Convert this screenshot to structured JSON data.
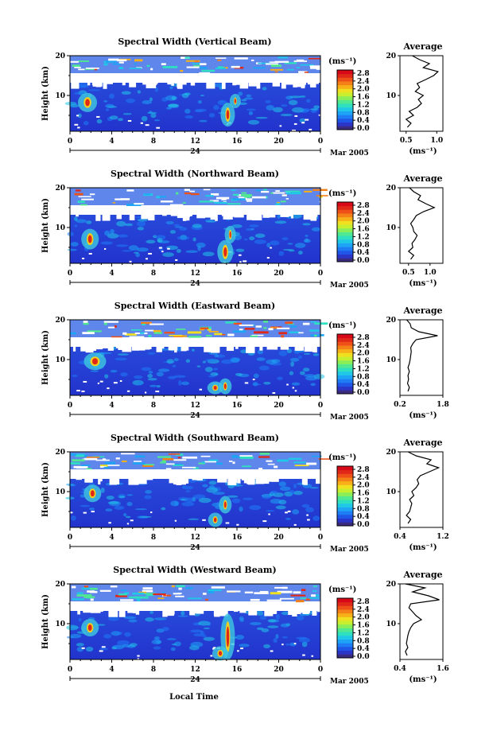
{
  "figure": {
    "xlabel": "Local Time",
    "date_label": "Mar 2005",
    "unit_label": "(ms⁻¹)",
    "ylabel": "Height (km)",
    "avg_title": "Average",
    "avg_xlabel": "(ms⁻¹)",
    "day_marker": "24",
    "colors": {
      "scale": [
        "#3a2a80",
        "#2b35c8",
        "#1f56e8",
        "#1e7cf5",
        "#1ea4f5",
        "#20c8e8",
        "#2ee0c0",
        "#50e890",
        "#8aee58",
        "#c8ee30",
        "#f0e020",
        "#f8b018",
        "#f48018",
        "#ee5018",
        "#e02818",
        "#d80818"
      ]
    }
  },
  "chart_data": [
    {
      "type": "heatmap",
      "title": "Spectral Width (Vertical Beam)",
      "x_ticks": [
        "0",
        "4",
        "8",
        "12",
        "16",
        "20",
        "0"
      ],
      "y_ticks": [
        "20",
        "10"
      ],
      "colorbar_ticks": [
        "2.8",
        "2.4",
        "2.0",
        "1.6",
        "1.2",
        "0.8",
        "0.4",
        "0.0"
      ],
      "avg": {
        "xlim": [
          0.4,
          1.1
        ],
        "x_ticks": [
          "0.5",
          "1.0"
        ],
        "x_tick_values": [
          0.5,
          1.0
        ],
        "profile": [
          [
            0.52,
            2
          ],
          [
            0.58,
            3
          ],
          [
            0.5,
            4
          ],
          [
            0.62,
            5
          ],
          [
            0.55,
            6
          ],
          [
            0.68,
            7
          ],
          [
            0.75,
            8
          ],
          [
            0.7,
            9
          ],
          [
            0.78,
            10
          ],
          [
            0.65,
            11
          ],
          [
            0.72,
            12
          ],
          [
            0.68,
            13
          ],
          [
            0.82,
            14
          ],
          [
            0.95,
            15
          ],
          [
            1.02,
            16
          ],
          [
            0.78,
            17
          ],
          [
            0.88,
            18
          ],
          [
            0.72,
            19
          ],
          [
            0.6,
            20
          ]
        ]
      }
    },
    {
      "type": "heatmap",
      "title": "Spectral Width (Northward Beam)",
      "x_ticks": [
        "0",
        "4",
        "8",
        "12",
        "16",
        "20",
        "0"
      ],
      "y_ticks": [
        "20",
        "10"
      ],
      "colorbar_ticks": [
        "2.8",
        "2.4",
        "2.0",
        "1.6",
        "1.2",
        "0.8",
        "0.4",
        "0.0"
      ],
      "avg": {
        "xlim": [
          0.3,
          1.3
        ],
        "x_ticks": [
          "0.5",
          "1.0"
        ],
        "x_tick_values": [
          0.5,
          1.0
        ],
        "profile": [
          [
            0.55,
            2
          ],
          [
            0.62,
            3
          ],
          [
            0.5,
            4
          ],
          [
            0.6,
            5
          ],
          [
            0.58,
            6
          ],
          [
            0.65,
            7
          ],
          [
            0.7,
            8
          ],
          [
            0.62,
            9
          ],
          [
            0.6,
            10
          ],
          [
            0.55,
            11
          ],
          [
            0.62,
            12
          ],
          [
            0.68,
            13
          ],
          [
            0.85,
            14
          ],
          [
            1.1,
            15
          ],
          [
            0.9,
            16
          ],
          [
            0.72,
            17
          ],
          [
            0.78,
            18
          ],
          [
            0.62,
            19
          ],
          [
            0.52,
            20
          ]
        ]
      }
    },
    {
      "type": "heatmap",
      "title": "Spectral Width (Eastward Beam)",
      "x_ticks": [
        "0",
        "4",
        "8",
        "12",
        "16",
        "20",
        "0"
      ],
      "y_ticks": [
        "20",
        "10"
      ],
      "colorbar_ticks": [
        "2.8",
        "2.4",
        "2.0",
        "1.6",
        "1.2",
        "0.8",
        "0.4",
        "0.0"
      ],
      "avg": {
        "xlim": [
          0.2,
          1.8
        ],
        "x_ticks": [
          "0.2",
          "1.8"
        ],
        "x_tick_values": [
          0.2,
          1.8
        ],
        "profile": [
          [
            0.5,
            2
          ],
          [
            0.55,
            3
          ],
          [
            0.48,
            4
          ],
          [
            0.52,
            5
          ],
          [
            0.5,
            6
          ],
          [
            0.55,
            7
          ],
          [
            0.5,
            8
          ],
          [
            0.55,
            9
          ],
          [
            0.58,
            10
          ],
          [
            0.6,
            11
          ],
          [
            0.62,
            12
          ],
          [
            0.6,
            13
          ],
          [
            0.68,
            14
          ],
          [
            0.8,
            15
          ],
          [
            1.6,
            16
          ],
          [
            0.9,
            17
          ],
          [
            0.62,
            18
          ],
          [
            0.58,
            19
          ],
          [
            0.45,
            20
          ]
        ]
      }
    },
    {
      "type": "heatmap",
      "title": "Spectral Width (Southward Beam)",
      "x_ticks": [
        "0",
        "4",
        "8",
        "12",
        "16",
        "20",
        "0"
      ],
      "y_ticks": [
        "20",
        "10"
      ],
      "colorbar_ticks": [
        "2.8",
        "2.4",
        "2.0",
        "1.6",
        "1.2",
        "0.8",
        "0.4",
        "0.0"
      ],
      "avg": {
        "xlim": [
          0.4,
          1.2
        ],
        "x_ticks": [
          "0.4",
          "1.2"
        ],
        "x_tick_values": [
          0.4,
          1.2
        ],
        "profile": [
          [
            0.55,
            2
          ],
          [
            0.6,
            3
          ],
          [
            0.52,
            4
          ],
          [
            0.58,
            5
          ],
          [
            0.6,
            6
          ],
          [
            0.62,
            7
          ],
          [
            0.58,
            8
          ],
          [
            0.66,
            9
          ],
          [
            0.62,
            10
          ],
          [
            0.7,
            11
          ],
          [
            0.75,
            12
          ],
          [
            0.72,
            13
          ],
          [
            0.78,
            14
          ],
          [
            0.95,
            15
          ],
          [
            1.12,
            16
          ],
          [
            0.9,
            17
          ],
          [
            0.98,
            18
          ],
          [
            0.7,
            19
          ],
          [
            0.55,
            20
          ]
        ]
      }
    },
    {
      "type": "heatmap",
      "title": "Spectral Width (Westward Beam)",
      "x_ticks": [
        "0",
        "4",
        "8",
        "12",
        "16",
        "20",
        "0"
      ],
      "y_ticks": [
        "20",
        "10"
      ],
      "colorbar_ticks": [
        "2.8",
        "2.4",
        "2.0",
        "1.6",
        "1.2",
        "0.8",
        "0.4",
        "0.0"
      ],
      "avg": {
        "xlim": [
          0.4,
          1.6
        ],
        "x_ticks": [
          "0.4",
          "1.6"
        ],
        "x_tick_values": [
          0.4,
          1.6
        ],
        "profile": [
          [
            0.6,
            2
          ],
          [
            0.55,
            3
          ],
          [
            0.62,
            4
          ],
          [
            0.58,
            5
          ],
          [
            0.6,
            6
          ],
          [
            0.62,
            7
          ],
          [
            0.65,
            8
          ],
          [
            0.7,
            9
          ],
          [
            0.78,
            10
          ],
          [
            1.0,
            11
          ],
          [
            0.85,
            12
          ],
          [
            0.75,
            13
          ],
          [
            0.65,
            14
          ],
          [
            0.7,
            15
          ],
          [
            1.5,
            16
          ],
          [
            1.2,
            17
          ],
          [
            0.75,
            18
          ],
          [
            1.1,
            19
          ],
          [
            0.55,
            20
          ]
        ]
      }
    }
  ]
}
